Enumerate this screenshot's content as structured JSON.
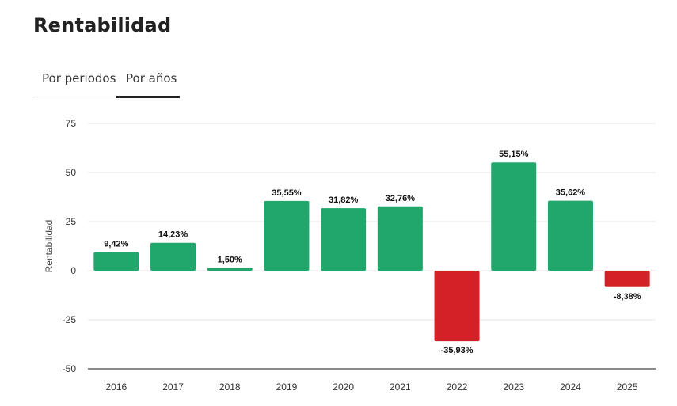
{
  "page": {
    "title": "Rentabilidad"
  },
  "tabs": [
    {
      "label": "Por periodos",
      "active": false
    },
    {
      "label": "Por años",
      "active": true
    }
  ],
  "colors": {
    "positive": "#21a66b",
    "negative": "#d42027",
    "grid": "#e6e6e6",
    "axis": "#444444"
  },
  "chart_data": {
    "type": "bar",
    "ylabel": "Rentabilidad",
    "ylim": [
      -50,
      75
    ],
    "yticks": [
      75,
      50,
      25,
      0,
      -25,
      -50
    ],
    "grid": true,
    "categories": [
      "2016",
      "2017",
      "2018",
      "2019",
      "2020",
      "2021",
      "2022",
      "2023",
      "2024",
      "2025"
    ],
    "values": [
      9.42,
      14.23,
      1.5,
      35.55,
      31.82,
      32.76,
      -35.93,
      55.15,
      35.62,
      -8.38
    ],
    "data_labels": [
      "9,42%",
      "14,23%",
      "1,50%",
      "35,55%",
      "31,82%",
      "32,76%",
      "-35,93%",
      "55,15%",
      "35,62%",
      "-8,38%"
    ]
  }
}
